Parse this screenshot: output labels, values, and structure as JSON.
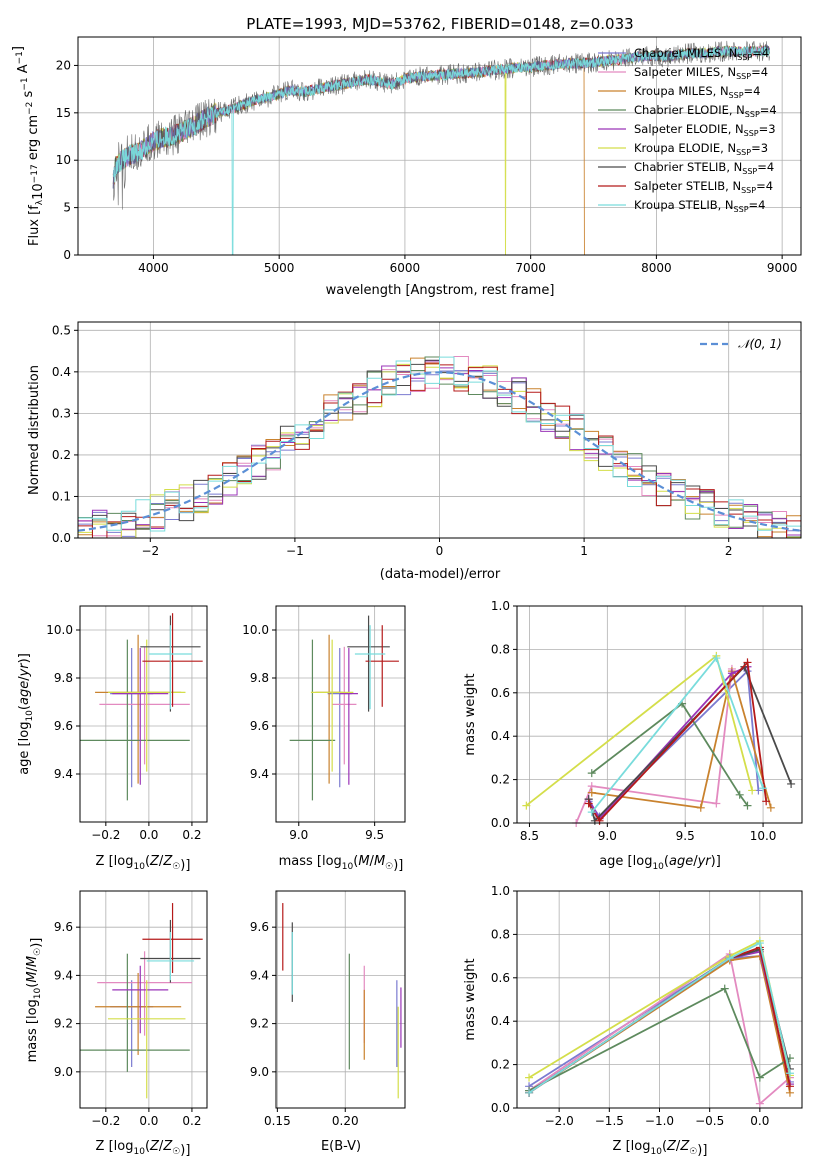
{
  "figure_title": "PLATE=1993, MJD=53762, FIBERID=0148, z=0.033",
  "legend_labels": [
    {
      "name": "Chabrier MILES",
      "color": "#7b7bd0"
    },
    {
      "name": "Salpeter MILES",
      "color": "#e38ac0"
    },
    {
      "name": "Kroupa MILES",
      "color": "#c9822e"
    },
    {
      "name": "Chabrier ELODIE",
      "color": "#5e8a5e"
    },
    {
      "name": "Salpeter ELODIE",
      "color": "#9a35b8"
    },
    {
      "name": "Kroupa ELODIE",
      "color": "#d4de4a"
    },
    {
      "name": "Chabrier STELIB",
      "color": "#4a4a4a"
    },
    {
      "name": "Salpeter STELIB",
      "color": "#b51a1a"
    },
    {
      "name": "Kroupa STELIB",
      "color": "#79dcdc"
    }
  ],
  "ssp_counts": [
    "4",
    "4",
    "4",
    "4",
    "3",
    "3",
    "4",
    "4",
    "4"
  ],
  "chart_data": [
    {
      "id": "spectrum",
      "type": "line",
      "title": "PLATE=1993, MJD=53762, FIBERID=0148, z=0.033",
      "xlabel": "wavelength [Angstrom, rest frame]",
      "ylabel_parts": [
        "Flux [f",
        "λ",
        "10",
        "−17",
        " erg cm",
        "−2",
        " s",
        "−1",
        " A",
        "−1",
        "]"
      ],
      "xlim": [
        3400,
        9150
      ],
      "ylim": [
        0,
        23
      ],
      "xticks": [
        4000,
        5000,
        6000,
        7000,
        8000,
        9000
      ],
      "yticks": [
        0,
        5,
        10,
        15,
        20
      ],
      "x": [
        3680,
        3700,
        3800,
        3900,
        4000,
        4100,
        4200,
        4300,
        4400,
        4500,
        4600,
        4700,
        4800,
        4900,
        5000,
        5100,
        5200,
        5300,
        5400,
        5500,
        5600,
        5700,
        5800,
        5900,
        6000,
        6100,
        6200,
        6300,
        6400,
        6500,
        6600,
        6700,
        6800,
        6900,
        7000,
        7100,
        7200,
        7300,
        7400,
        7500,
        7600,
        7700,
        7800,
        7900,
        8000,
        8100,
        8200,
        8300,
        8400,
        8500,
        8600,
        8700,
        8800,
        8900
      ],
      "y": [
        7.5,
        9.5,
        10.5,
        11.0,
        12.0,
        12.5,
        12.8,
        13.5,
        14.3,
        15.0,
        15.3,
        15.8,
        16.3,
        16.6,
        17.0,
        17.4,
        17.2,
        17.5,
        17.8,
        18.0,
        18.3,
        18.5,
        18.3,
        18.0,
        18.6,
        18.8,
        18.9,
        19.0,
        19.1,
        19.2,
        19.3,
        19.5,
        19.6,
        19.8,
        19.8,
        20.0,
        20.1,
        20.2,
        20.2,
        20.3,
        20.5,
        20.6,
        20.8,
        21.0,
        21.0,
        20.9,
        21.2,
        21.3,
        21.3,
        21.5,
        21.5,
        21.4,
        21.5,
        21.6
      ]
    },
    {
      "id": "residuals",
      "type": "histogram",
      "xlabel": "(data-model)/error",
      "ylabel": "Normed distribution",
      "xlim": [
        -2.5,
        2.5
      ],
      "ylim": [
        0,
        0.52
      ],
      "xticks": [
        -2,
        -1,
        0,
        1,
        2
      ],
      "yticks": [
        0.0,
        0.1,
        0.2,
        0.3,
        0.4,
        0.5
      ],
      "gaussian_label": "𝒩(0, 1)",
      "bins_start": -2.5,
      "bin_width": 0.1
    },
    {
      "id": "age_vs_Z",
      "type": "errorbar",
      "xlabel": "Z [log10(Z/Z☉)]",
      "ylabel": "age  [log10(age/yr)]",
      "xlim": [
        -0.32,
        0.27
      ],
      "ylim": [
        9.2,
        10.1
      ],
      "xticks": [
        -0.2,
        0.0,
        0.2
      ],
      "yticks": [
        9.4,
        9.6,
        9.8,
        10.0
      ],
      "points": [
        {
          "x": -0.08,
          "xerr": 0.1,
          "y": 9.735,
          "yerr": [
            0.39,
            0.19
          ]
        },
        {
          "x": -0.02,
          "xerr": 0.21,
          "y": 9.69,
          "yerr": [
            0.25,
            0.24
          ]
        },
        {
          "x": -0.05,
          "xerr": 0.2,
          "y": 9.74,
          "yerr": [
            0.38,
            0.24
          ]
        },
        {
          "x": -0.1,
          "xerr": 0.29,
          "y": 9.54,
          "yerr": [
            0.25,
            0.42
          ]
        },
        {
          "x": -0.04,
          "xerr": 0.13,
          "y": 9.735,
          "yerr": [
            0.38,
            0.19
          ]
        },
        {
          "x": -0.01,
          "xerr": 0.18,
          "y": 9.74,
          "yerr": [
            0.33,
            0.22
          ]
        },
        {
          "x": 0.1,
          "xerr": 0.14,
          "y": 9.93,
          "yerr": [
            0.27,
            0.13
          ]
        },
        {
          "x": 0.11,
          "xerr": 0.14,
          "y": 9.87,
          "yerr": [
            0.19,
            0.2
          ]
        },
        {
          "x": 0.1,
          "xerr": 0.1,
          "y": 9.9,
          "yerr": [
            0.23,
            0.12
          ]
        }
      ]
    },
    {
      "id": "age_vs_mass",
      "type": "errorbar",
      "xlabel": "mass [log10(M/M☉)]",
      "ylabel": "",
      "xlim": [
        8.85,
        9.7
      ],
      "ylim": [
        9.2,
        10.1
      ],
      "xticks": [
        9.0,
        9.5
      ],
      "yticks": [
        9.4,
        9.6,
        9.8,
        10.0
      ],
      "points": [
        {
          "x": 9.27,
          "xerr": 0.08,
          "y": 9.735,
          "yerr": [
            0.39,
            0.19
          ]
        },
        {
          "x": 9.3,
          "xerr": 0.08,
          "y": 9.69,
          "yerr": [
            0.25,
            0.24
          ]
        },
        {
          "x": 9.2,
          "xerr": 0.09,
          "y": 9.74,
          "yerr": [
            0.38,
            0.24
          ]
        },
        {
          "x": 9.09,
          "xerr": 0.15,
          "y": 9.54,
          "yerr": [
            0.25,
            0.42
          ]
        },
        {
          "x": 9.33,
          "xerr": 0.06,
          "y": 9.735,
          "yerr": [
            0.38,
            0.19
          ]
        },
        {
          "x": 9.22,
          "xerr": 0.14,
          "y": 9.74,
          "yerr": [
            0.33,
            0.22
          ]
        },
        {
          "x": 9.46,
          "xerr": 0.14,
          "y": 9.93,
          "yerr": [
            0.27,
            0.13
          ]
        },
        {
          "x": 9.55,
          "xerr": 0.11,
          "y": 9.87,
          "yerr": [
            0.19,
            0.15
          ]
        },
        {
          "x": 9.47,
          "xerr": 0.1,
          "y": 9.9,
          "yerr": [
            0.23,
            0.12
          ]
        }
      ]
    },
    {
      "id": "weight_vs_age",
      "type": "line",
      "xlabel": "age  [log10(age/yr)]",
      "ylabel": "mass weight",
      "xlim": [
        8.42,
        10.25
      ],
      "ylim": [
        0,
        1.0
      ],
      "xticks": [
        8.5,
        9.0,
        9.5,
        10.0
      ],
      "yticks": [
        0.0,
        0.2,
        0.4,
        0.6,
        0.8,
        1.0
      ],
      "series": [
        {
          "x": [
            8.88,
            8.95,
            9.9,
            9.97
          ],
          "y": [
            0.1,
            0.03,
            0.7,
            0.15
          ]
        },
        {
          "x": [
            8.8,
            8.9,
            9.7,
            9.8
          ],
          "y": [
            0.0,
            0.17,
            0.09,
            0.71
          ]
        },
        {
          "x": [
            8.9,
            9.6,
            9.8,
            10.05
          ],
          "y": [
            0.14,
            0.07,
            0.7,
            0.07
          ]
        },
        {
          "x": [
            8.9,
            9.48,
            9.85,
            9.9
          ],
          "y": [
            0.23,
            0.55,
            0.13,
            0.08
          ]
        },
        {
          "x": [
            8.88,
            8.95,
            9.8,
            9.9
          ],
          "y": [
            0.11,
            0.02,
            0.69,
            0.72
          ]
        },
        {
          "x": [
            8.48,
            9.7,
            9.93
          ],
          "y": [
            0.08,
            0.77,
            0.15
          ]
        },
        {
          "x": [
            8.88,
            8.92,
            9.88,
            10.18
          ],
          "y": [
            0.11,
            0.01,
            0.72,
            0.18
          ]
        },
        {
          "x": [
            8.88,
            8.95,
            9.9,
            10.02
          ],
          "y": [
            0.09,
            0.01,
            0.74,
            0.1
          ]
        },
        {
          "x": [
            8.9,
            9.7,
            10.0
          ],
          "y": [
            0.05,
            0.76,
            0.16
          ]
        }
      ]
    },
    {
      "id": "mass_vs_Z",
      "type": "errorbar",
      "xlabel": "Z [log10(Z/Z☉)]",
      "ylabel": "mass [log10(M/M☉)]",
      "xlim": [
        -0.32,
        0.27
      ],
      "ylim": [
        8.85,
        9.75
      ],
      "xticks": [
        -0.2,
        0.0,
        0.2
      ],
      "yticks": [
        9.0,
        9.2,
        9.4,
        9.6
      ],
      "points": [
        {
          "x": -0.08,
          "xerr": 0.1,
          "y": 9.27,
          "yerr": [
            0.25,
            0.11
          ]
        },
        {
          "x": -0.02,
          "xerr": 0.22,
          "y": 9.37,
          "yerr": [
            0.22,
            0.13
          ]
        },
        {
          "x": -0.05,
          "xerr": 0.2,
          "y": 9.27,
          "yerr": [
            0.2,
            0.14
          ]
        },
        {
          "x": -0.1,
          "xerr": 0.29,
          "y": 9.09,
          "yerr": [
            0.09,
            0.4
          ]
        },
        {
          "x": -0.04,
          "xerr": 0.13,
          "y": 9.34,
          "yerr": [
            0.18,
            0.1
          ]
        },
        {
          "x": -0.01,
          "xerr": 0.18,
          "y": 9.22,
          "yerr": [
            0.33,
            0.16
          ]
        },
        {
          "x": 0.1,
          "xerr": 0.14,
          "y": 9.47,
          "yerr": [
            0.1,
            0.16
          ]
        },
        {
          "x": 0.11,
          "xerr": 0.14,
          "y": 9.55,
          "yerr": [
            0.14,
            0.15
          ]
        },
        {
          "x": 0.1,
          "xerr": 0.11,
          "y": 9.46,
          "yerr": [
            0.08,
            0.12
          ]
        }
      ]
    },
    {
      "id": "mass_vs_ebv",
      "type": "errorbar",
      "xlabel": "E(B-V)",
      "ylabel": "",
      "xlim": [
        0.149,
        0.244
      ],
      "ylim": [
        8.85,
        9.75
      ],
      "xticks": [
        0.15,
        0.2
      ],
      "yticks": [
        9.0,
        9.2,
        9.4,
        9.6
      ],
      "points": [
        {
          "x": 0.238,
          "y": 9.27,
          "yerr": [
            0.25,
            0.11
          ]
        },
        {
          "x": 0.214,
          "y": 9.3,
          "yerr": [
            0.18,
            0.14
          ]
        },
        {
          "x": 0.214,
          "y": 9.2,
          "yerr": [
            0.15,
            0.14
          ]
        },
        {
          "x": 0.203,
          "y": 9.25,
          "yerr": [
            0.24,
            0.24
          ]
        },
        {
          "x": 0.241,
          "y": 9.3,
          "yerr": [
            0.2,
            0.05
          ]
        },
        {
          "x": 0.239,
          "y": 9.14,
          "yerr": [
            0.25,
            0.13
          ]
        },
        {
          "x": 0.161,
          "y": 9.46,
          "yerr": [
            0.17,
            0.16
          ]
        },
        {
          "x": 0.154,
          "y": 9.56,
          "yerr": [
            0.14,
            0.14
          ]
        },
        {
          "x": 0.161,
          "y": 9.45,
          "yerr": [
            0.13,
            0.13
          ]
        }
      ]
    },
    {
      "id": "weight_vs_Z",
      "type": "line",
      "xlabel": "Z [log10(Z/Z☉)]",
      "ylabel": "mass weight",
      "xlim": [
        -2.42,
        0.42
      ],
      "ylim": [
        0,
        1.0
      ],
      "xticks": [
        -2.0,
        -1.5,
        -1.0,
        -0.5,
        0.0
      ],
      "yticks": [
        0.0,
        0.2,
        0.4,
        0.6,
        0.8,
        1.0
      ],
      "series": [
        {
          "x": [
            -2.3,
            -0.3,
            0.0,
            0.3
          ],
          "y": [
            0.1,
            0.69,
            0.7,
            0.12
          ]
        },
        {
          "x": [
            -2.3,
            -0.3,
            0.0,
            0.3
          ],
          "y": [
            0.08,
            0.71,
            0.02,
            0.14
          ]
        },
        {
          "x": [
            -2.3,
            -0.3,
            0.0,
            0.3
          ],
          "y": [
            0.07,
            0.68,
            0.7,
            0.07
          ]
        },
        {
          "x": [
            -2.3,
            -0.35,
            0.0,
            0.3
          ],
          "y": [
            0.08,
            0.55,
            0.14,
            0.23
          ]
        },
        {
          "x": [
            -2.3,
            -0.3,
            0.0,
            0.3
          ],
          "y": [
            0.07,
            0.69,
            0.72,
            0.11
          ]
        },
        {
          "x": [
            -2.3,
            -0.3,
            0.0,
            0.3
          ],
          "y": [
            0.14,
            0.7,
            0.77,
            0.15
          ]
        },
        {
          "x": [
            -2.3,
            -0.3,
            0.0,
            0.3
          ],
          "y": [
            0.07,
            0.69,
            0.73,
            0.18
          ]
        },
        {
          "x": [
            -2.3,
            -0.3,
            0.0,
            0.3
          ],
          "y": [
            0.07,
            0.69,
            0.74,
            0.1
          ]
        },
        {
          "x": [
            -2.3,
            -0.3,
            0.0,
            0.3
          ],
          "y": [
            0.07,
            0.69,
            0.76,
            0.16
          ]
        }
      ]
    }
  ]
}
